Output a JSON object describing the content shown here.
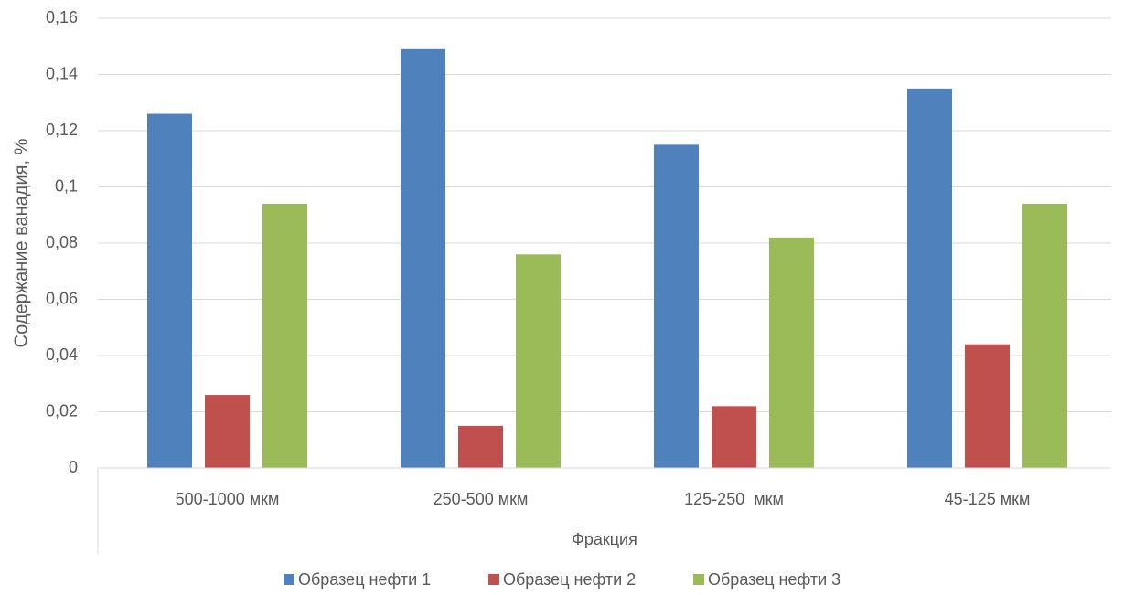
{
  "chart_data": {
    "type": "bar",
    "y_label": "Содержание ванадия, %",
    "x_label": "Фракция",
    "categories": [
      "500-1000 мкм",
      "250-500 мкм",
      "125-250  мкм",
      "45-125 мкм"
    ],
    "series": [
      {
        "name": "Образец нефти 1",
        "color": "#4f81bd",
        "values": [
          0.126,
          0.149,
          0.115,
          0.135
        ]
      },
      {
        "name": "Образец нефти 2",
        "color": "#c0504d",
        "values": [
          0.026,
          0.015,
          0.022,
          0.044
        ]
      },
      {
        "name": "Образец нефти 3",
        "color": "#9bbb59",
        "values": [
          0.094,
          0.076,
          0.082,
          0.094
        ]
      }
    ],
    "ylim": [
      0,
      0.16
    ],
    "yticks": [
      0,
      {
        "value": 0.02,
        "label": "0,02"
      },
      {
        "value": 0.04,
        "label": "0,04"
      },
      {
        "value": 0.06,
        "label": "0,06"
      },
      {
        "value": 0.08,
        "label": "0,08"
      },
      {
        "value": 0.1,
        "label": "0,1"
      },
      {
        "value": 0.12,
        "label": "0,12"
      },
      {
        "value": 0.14,
        "label": "0,14"
      },
      {
        "value": 0.16,
        "label": "0,16"
      }
    ],
    "grid": true,
    "legend": "bottom"
  }
}
